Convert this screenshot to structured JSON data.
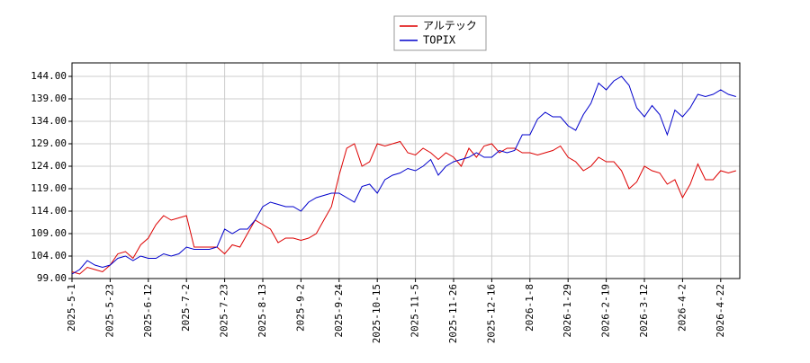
{
  "chart_data": {
    "type": "line",
    "categories": [
      "2025-5-1",
      null,
      null,
      null,
      null,
      "2025-5-23",
      null,
      null,
      null,
      null,
      "2025-6-12",
      null,
      null,
      null,
      null,
      "2025-7-2",
      null,
      null,
      null,
      null,
      "2025-7-23",
      null,
      null,
      null,
      null,
      "2025-8-13",
      null,
      null,
      null,
      null,
      "2025-9-2",
      null,
      null,
      null,
      null,
      "2025-9-24",
      null,
      null,
      null,
      null,
      "2025-10-15",
      null,
      null,
      null,
      null,
      "2025-11-5",
      null,
      null,
      null,
      null,
      "2025-11-26",
      null,
      null,
      null,
      null,
      "2025-12-16",
      null,
      null,
      null,
      null,
      "2026-1-8",
      null,
      null,
      null,
      null,
      "2026-1-29",
      null,
      null,
      null,
      null,
      "2026-2-19",
      null,
      null,
      null,
      null,
      "2026-3-12",
      null,
      null,
      null,
      null,
      "2026-4-2",
      null,
      null,
      null,
      null,
      "2026-4-22",
      null,
      null
    ],
    "series": [
      {
        "name": "アルテック",
        "color": "#dd0000",
        "values": [
          100.5,
          100,
          101.5,
          101,
          100.5,
          102,
          104.5,
          105,
          103.5,
          106.5,
          108,
          111,
          113,
          112,
          112.5,
          113,
          106,
          106,
          106,
          106,
          104.5,
          106.5,
          106,
          109,
          112,
          111,
          110,
          107,
          108,
          108,
          107.5,
          108,
          109,
          112,
          115,
          122,
          128,
          129,
          124,
          125,
          129,
          128.5,
          129,
          129.5,
          127,
          126.5,
          128,
          127,
          125.5,
          127,
          126,
          124,
          128,
          126,
          128.5,
          129,
          127,
          128,
          128,
          127,
          127,
          126.5,
          127,
          127.5,
          128.5,
          126,
          125,
          123,
          124,
          126,
          125,
          125,
          123,
          119,
          120.5,
          124,
          123,
          122.5,
          120,
          121,
          117,
          120,
          124.5,
          121,
          121,
          123,
          122.5,
          123
        ]
      },
      {
        "name": "TOPIX",
        "color": "#0000cc",
        "values": [
          100,
          101,
          103,
          102,
          101.5,
          102,
          103.5,
          104,
          103,
          104,
          103.5,
          103.5,
          104.5,
          104,
          104.5,
          106,
          105.5,
          105.5,
          105.5,
          106,
          110,
          109,
          110,
          110,
          112,
          115,
          116,
          115.5,
          115,
          115,
          114,
          116,
          117,
          117.5,
          118,
          118,
          117,
          116,
          119.5,
          120,
          118,
          121,
          122,
          122.5,
          123.5,
          123,
          124,
          125.5,
          122,
          124,
          125,
          125.5,
          126,
          127,
          126,
          126,
          127.5,
          127,
          127.5,
          131,
          131,
          134.5,
          136,
          135,
          135,
          133,
          132,
          135.5,
          138,
          142.5,
          141,
          143,
          144,
          142,
          137,
          135,
          137.5,
          135.5,
          131,
          136.5,
          135,
          137,
          140,
          139.5,
          140,
          141,
          140,
          139.5
        ]
      }
    ],
    "ylim": [
      99,
      147
    ],
    "yticks": [
      {
        "value": 99,
        "label": "99.00"
      },
      {
        "value": 104,
        "label": "104.00"
      },
      {
        "value": 109,
        "label": "109.00"
      },
      {
        "value": 114,
        "label": "114.00"
      },
      {
        "value": 119,
        "label": "119.00"
      },
      {
        "value": 124,
        "label": "124.00"
      },
      {
        "value": 129,
        "label": "129.00"
      },
      {
        "value": 134,
        "label": "134.00"
      },
      {
        "value": 139,
        "label": "139.00"
      },
      {
        "value": 144,
        "label": "144.00"
      }
    ],
    "grid": true
  }
}
